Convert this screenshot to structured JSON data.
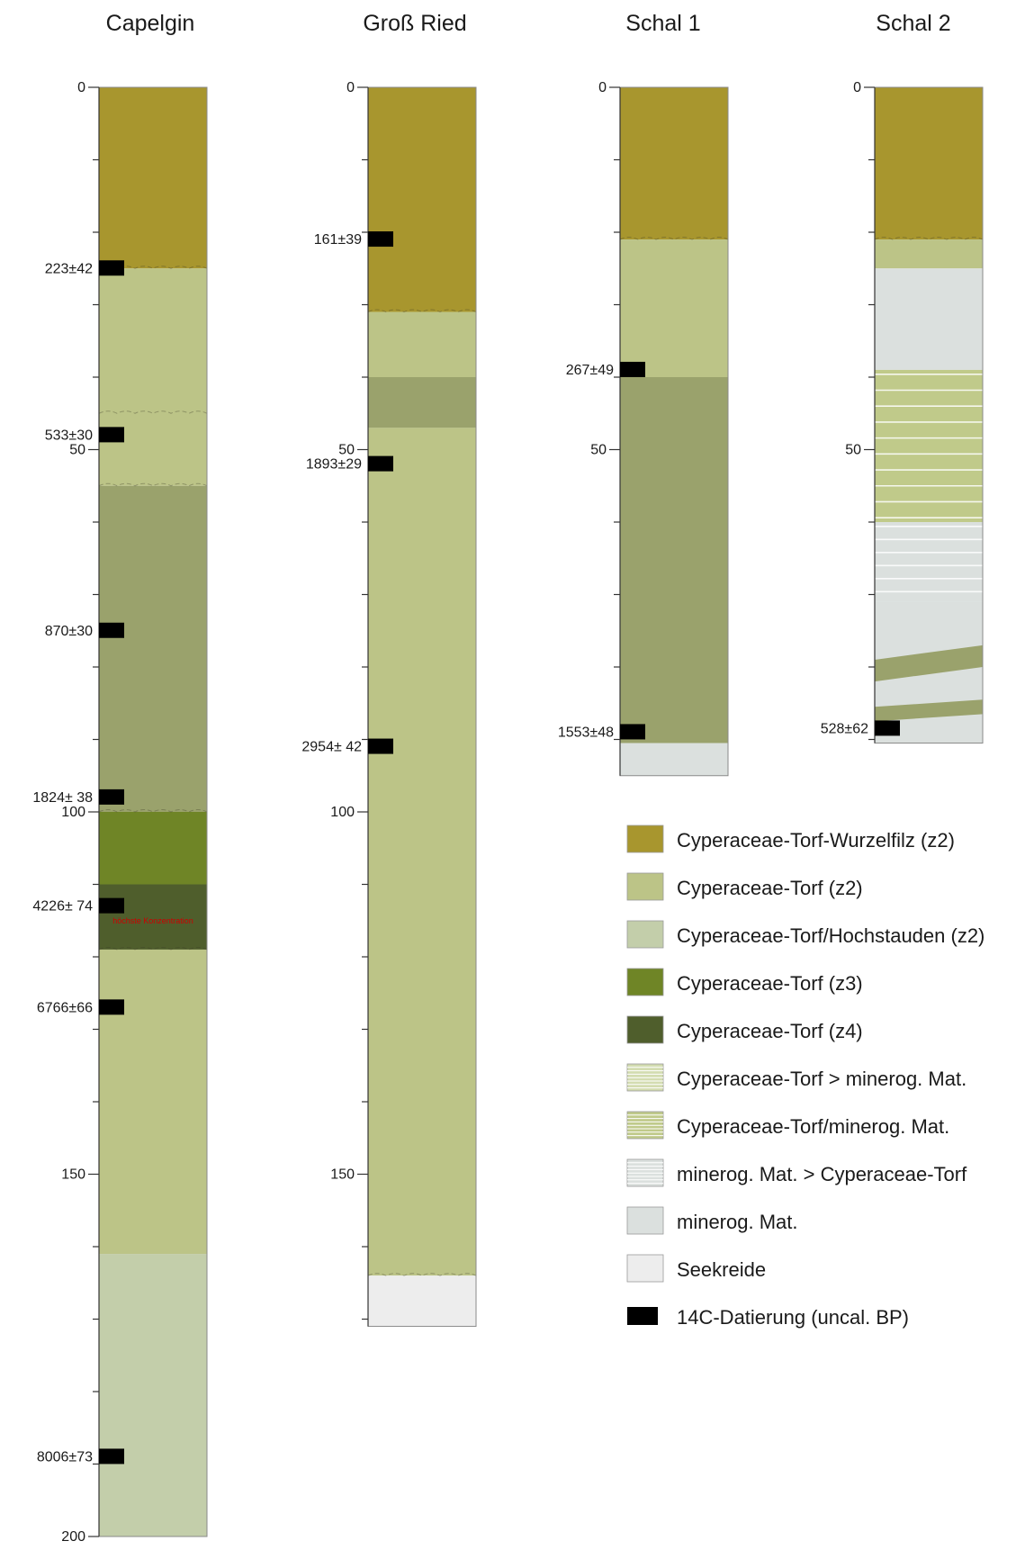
{
  "colors": {
    "wurzelfilz": "#a8962e",
    "torf_z2": "#bcc487",
    "hochstauden": "#c3ceaa",
    "torf_z3": "#6f8526",
    "torf_z4": "#4f5e2c",
    "dark_torf_band": "#9aa26c",
    "mineral": "#dbe0de",
    "seekreide": "#ededed",
    "mix_light": "#d3dcb0",
    "mix_mid": "#c0ca8a",
    "dating": "#000000",
    "note": "#cc0000"
  },
  "columns": [
    {
      "id": "capelgin",
      "title": "Capelgin",
      "depth": 200,
      "axis_labels": [
        {
          "depth": 0,
          "text": "0"
        },
        {
          "depth": 50,
          "text": "50"
        },
        {
          "depth": 100,
          "text": "100"
        },
        {
          "depth": 150,
          "text": "150"
        },
        {
          "depth": 200,
          "text": "200"
        }
      ],
      "layers": [
        {
          "from": 0,
          "to": 25,
          "kind": "wurzelfilz"
        },
        {
          "from": 25,
          "to": 55,
          "kind": "torf_z2"
        },
        {
          "from": 55,
          "to": 100,
          "kind": "dark_torf_band"
        },
        {
          "from": 100,
          "to": 110,
          "kind": "torf_z3"
        },
        {
          "from": 110,
          "to": 119,
          "kind": "torf_z4"
        },
        {
          "from": 119,
          "to": 161,
          "kind": "torf_z2"
        },
        {
          "from": 161,
          "to": 200,
          "kind": "hochstauden"
        }
      ],
      "boundaries": [
        25,
        45,
        55,
        100,
        119
      ],
      "dates": [
        {
          "depth": 25,
          "text": "223±42"
        },
        {
          "depth": 48,
          "text": "533±30"
        },
        {
          "depth": 75,
          "text": "870±30"
        },
        {
          "depth": 98,
          "text": "1824± 38"
        },
        {
          "depth": 113,
          "text": "4226± 74"
        },
        {
          "depth": 127,
          "text": "6766±66"
        },
        {
          "depth": 189,
          "text": "8006±73"
        }
      ],
      "note": {
        "depth": 115,
        "text": "höchste Konzentration"
      }
    },
    {
      "id": "gross_ried",
      "title": "Groß Ried",
      "depth": 171,
      "axis_labels": [
        {
          "depth": 0,
          "text": "0"
        },
        {
          "depth": 50,
          "text": "50"
        },
        {
          "depth": 100,
          "text": "100"
        },
        {
          "depth": 150,
          "text": "150"
        }
      ],
      "layers": [
        {
          "from": 0,
          "to": 31,
          "kind": "wurzelfilz"
        },
        {
          "from": 31,
          "to": 40,
          "kind": "torf_z2"
        },
        {
          "from": 40,
          "to": 47,
          "kind": "dark_torf_band"
        },
        {
          "from": 47,
          "to": 164,
          "kind": "torf_z2"
        },
        {
          "from": 164,
          "to": 171,
          "kind": "seekreide"
        }
      ],
      "boundaries": [
        31,
        164
      ],
      "dates": [
        {
          "depth": 21,
          "text": "161±39"
        },
        {
          "depth": 52,
          "text": "1893±29"
        },
        {
          "depth": 91,
          "text": "2954± 42"
        }
      ]
    },
    {
      "id": "schal_1",
      "title": "Schal 1",
      "depth": 95,
      "axis_labels": [
        {
          "depth": 0,
          "text": "0"
        },
        {
          "depth": 50,
          "text": "50"
        }
      ],
      "layers": [
        {
          "from": 0,
          "to": 21,
          "kind": "wurzelfilz"
        },
        {
          "from": 21,
          "to": 40,
          "kind": "torf_z2"
        },
        {
          "from": 40,
          "to": 90.5,
          "kind": "dark_torf_band"
        },
        {
          "from": 90.5,
          "to": 95,
          "kind": "mineral"
        }
      ],
      "boundaries": [
        21
      ],
      "dates": [
        {
          "depth": 39,
          "text": "267±49"
        },
        {
          "depth": 89,
          "text": "1553±48"
        }
      ]
    },
    {
      "id": "schal_2",
      "title": "Schal 2",
      "depth": 90.5,
      "axis_labels": [
        {
          "depth": 0,
          "text": "0"
        },
        {
          "depth": 50,
          "text": "50"
        }
      ],
      "layers": [
        {
          "from": 0,
          "to": 21,
          "kind": "wurzelfilz"
        },
        {
          "from": 21,
          "to": 25,
          "kind": "torf_z2"
        },
        {
          "from": 25,
          "to": 39,
          "kind": "mineral"
        },
        {
          "from": 39,
          "to": 60,
          "kind": "mix_mid",
          "hatch": 2.2
        },
        {
          "from": 60,
          "to": 71,
          "kind": "mineral",
          "hatch": 1.8
        },
        {
          "from": 71,
          "to": 90.5,
          "kind": "mineral"
        }
      ],
      "boundaries": [
        21
      ],
      "slanted_bands": [
        {
          "left_top": 79,
          "right_top": 77,
          "thickness": 3
        },
        {
          "left_top": 85.5,
          "right_top": 84.5,
          "thickness": 2
        }
      ],
      "dates": [
        {
          "depth": 88.5,
          "text": "528±62"
        }
      ]
    }
  ],
  "legend": [
    {
      "label": "Cyperaceae-Torf-Wurzelfilz (z2)",
      "kind": "wurzelfilz",
      "icon": "swatch-solid"
    },
    {
      "label": "Cyperaceae-Torf (z2)",
      "kind": "torf_z2",
      "icon": "swatch-solid"
    },
    {
      "label": "Cyperaceae-Torf/Hochstauden (z2)",
      "kind": "hochstauden",
      "icon": "swatch-solid"
    },
    {
      "label": "Cyperaceae-Torf (z3)",
      "kind": "torf_z3",
      "icon": "swatch-solid"
    },
    {
      "label": "Cyperaceae-Torf (z4)",
      "kind": "torf_z4",
      "icon": "swatch-solid"
    },
    {
      "label": "Cyperaceae-Torf > minerog. Mat.",
      "kind": "mix_light",
      "icon": "swatch-hatched"
    },
    {
      "label": "Cyperaceae-Torf/minerog. Mat.",
      "kind": "mix_mid",
      "icon": "swatch-hatched"
    },
    {
      "label": "minerog. Mat. > Cyperaceae-Torf",
      "kind": "mineral",
      "icon": "swatch-hatched"
    },
    {
      "label": "minerog. Mat.",
      "kind": "mineral",
      "icon": "swatch-solid"
    },
    {
      "label": "Seekreide",
      "kind": "seekreide",
      "icon": "swatch-solid"
    },
    {
      "label": "14C-Datierung (uncal. BP)",
      "kind": "dating",
      "icon": "dating-marker"
    }
  ]
}
